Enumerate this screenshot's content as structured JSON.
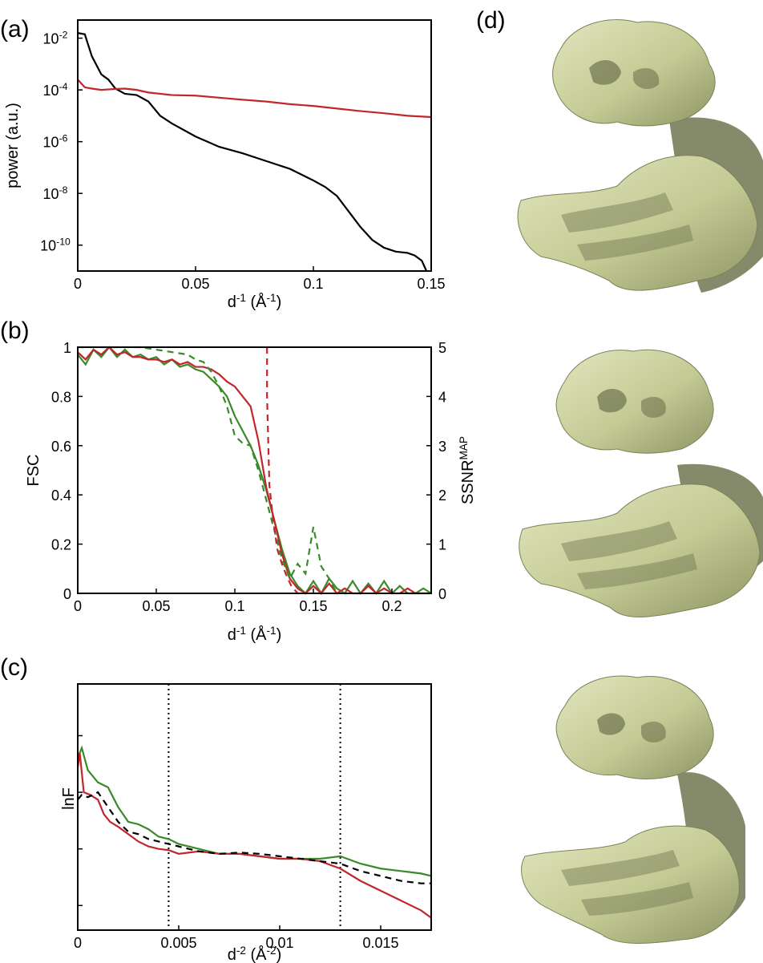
{
  "panel_labels": {
    "a": "(a)",
    "b": "(b)",
    "c": "(c)",
    "d": "(d)"
  },
  "colors": {
    "black": "#000000",
    "red": "#c0272d",
    "green": "#3a8a2a",
    "map_fill": "#c9cf9b",
    "map_shadow": "#6f7550"
  },
  "chart_data": [
    {
      "id": "a",
      "type": "line",
      "xlabel_main": "d",
      "xlabel_sup1": "-1",
      "xlabel_rest": " (Å",
      "xlabel_sup2": "-1",
      "xlabel_end": ")",
      "ylabel": "power (a.u.)",
      "xlim": [
        0,
        0.15
      ],
      "ylim_log10": [
        -11,
        -1.3
      ],
      "y_scale": "log",
      "x_ticks": [
        0,
        0.05,
        0.1,
        0.15
      ],
      "x_tick_labels": [
        "0",
        "0.05",
        "0.1",
        "0.15"
      ],
      "y_ticks_exp": [
        -10,
        -8,
        -6,
        -4,
        -2
      ],
      "y_tick_labels": [
        {
          "base": "10",
          "exp": "-10"
        },
        {
          "base": "10",
          "exp": "-8"
        },
        {
          "base": "10",
          "exp": "-6"
        },
        {
          "base": "10",
          "exp": "-4"
        },
        {
          "base": "10",
          "exp": "-2"
        }
      ],
      "series": [
        {
          "color": "#000000",
          "x": [
            0,
            0.003,
            0.006,
            0.01,
            0.013,
            0.016,
            0.02,
            0.025,
            0.03,
            0.035,
            0.04,
            0.05,
            0.06,
            0.07,
            0.08,
            0.09,
            0.1,
            0.105,
            0.11,
            0.115,
            0.12,
            0.125,
            0.13,
            0.135,
            0.14,
            0.143,
            0.146,
            0.148
          ],
          "y_log10": [
            -1.8,
            -1.85,
            -2.7,
            -3.4,
            -3.6,
            -3.95,
            -4.15,
            -4.2,
            -4.45,
            -5.0,
            -5.3,
            -5.8,
            -6.2,
            -6.45,
            -6.75,
            -7.05,
            -7.5,
            -7.75,
            -8.1,
            -8.7,
            -9.3,
            -9.8,
            -10.1,
            -10.25,
            -10.3,
            -10.4,
            -10.6,
            -11.1
          ]
        },
        {
          "color": "#c0272d",
          "x": [
            0,
            0.003,
            0.006,
            0.01,
            0.015,
            0.02,
            0.025,
            0.03,
            0.04,
            0.05,
            0.06,
            0.07,
            0.08,
            0.09,
            0.1,
            0.11,
            0.12,
            0.13,
            0.14,
            0.15
          ],
          "y_log10": [
            -3.6,
            -3.9,
            -3.95,
            -4.0,
            -3.97,
            -3.95,
            -4.0,
            -4.1,
            -4.2,
            -4.22,
            -4.3,
            -4.38,
            -4.45,
            -4.55,
            -4.62,
            -4.72,
            -4.82,
            -4.9,
            -5.0,
            -5.05
          ]
        }
      ]
    },
    {
      "id": "b",
      "type": "line",
      "xlabel_main": "d",
      "xlabel_sup1": "-1",
      "xlabel_rest": " (Å",
      "xlabel_sup2": "-1",
      "xlabel_end": ")",
      "ylabel": "FSC",
      "y2label_main": "SSNR",
      "y2label_sup": "MAP",
      "xlim": [
        0,
        0.225
      ],
      "ylim": [
        0,
        1
      ],
      "y2lim": [
        0,
        5
      ],
      "x_ticks": [
        0,
        0.05,
        0.1,
        0.15,
        0.2
      ],
      "x_tick_labels": [
        "0",
        "0.05",
        "0.1",
        "0.15",
        "0.2"
      ],
      "y_ticks": [
        0,
        0.2,
        0.4,
        0.6,
        0.8,
        1
      ],
      "y_tick_labels": [
        "0",
        "0.2",
        "0.4",
        "0.6",
        "0.8",
        "1"
      ],
      "y2_ticks": [
        0,
        1,
        2,
        3,
        4,
        5
      ],
      "y2_tick_labels": [
        "0",
        "1",
        "2",
        "3",
        "4",
        "5"
      ],
      "series": [
        {
          "color": "#3a8a2a",
          "axis": "left",
          "dash": false,
          "x": [
            0,
            0.005,
            0.01,
            0.015,
            0.02,
            0.025,
            0.03,
            0.035,
            0.04,
            0.045,
            0.05,
            0.055,
            0.06,
            0.065,
            0.07,
            0.075,
            0.08,
            0.085,
            0.09,
            0.095,
            0.1,
            0.105,
            0.11,
            0.115,
            0.12,
            0.125,
            0.13,
            0.135,
            0.14,
            0.145,
            0.15,
            0.155,
            0.16,
            0.165,
            0.17,
            0.175,
            0.18,
            0.185,
            0.19,
            0.195,
            0.2,
            0.205,
            0.21,
            0.215,
            0.22,
            0.225
          ],
          "y": [
            0.97,
            0.93,
            0.99,
            0.96,
            1.0,
            0.96,
            0.99,
            0.96,
            0.97,
            0.95,
            0.96,
            0.93,
            0.95,
            0.92,
            0.93,
            0.91,
            0.9,
            0.87,
            0.84,
            0.8,
            0.72,
            0.66,
            0.6,
            0.52,
            0.42,
            0.3,
            0.18,
            0.08,
            0.03,
            0.0,
            0.05,
            0.0,
            0.06,
            0.02,
            0.0,
            0.05,
            0.0,
            0.04,
            0.0,
            0.05,
            0.0,
            0.03,
            0.0,
            0.0,
            0.02,
            0.0
          ]
        },
        {
          "color": "#c0272d",
          "axis": "left",
          "dash": false,
          "x": [
            0,
            0.005,
            0.01,
            0.015,
            0.02,
            0.025,
            0.03,
            0.035,
            0.04,
            0.045,
            0.05,
            0.055,
            0.06,
            0.065,
            0.07,
            0.075,
            0.08,
            0.085,
            0.09,
            0.095,
            0.1,
            0.105,
            0.11,
            0.115,
            0.12,
            0.125,
            0.13,
            0.135,
            0.14,
            0.145,
            0.15,
            0.155,
            0.16,
            0.165,
            0.17,
            0.175,
            0.18,
            0.185,
            0.19,
            0.195,
            0.2,
            0.205,
            0.21,
            0.215,
            0.22,
            0.225
          ],
          "y": [
            0.98,
            0.95,
            0.99,
            0.97,
            1.0,
            0.97,
            0.98,
            0.96,
            0.96,
            0.95,
            0.95,
            0.94,
            0.95,
            0.93,
            0.94,
            0.92,
            0.92,
            0.91,
            0.89,
            0.86,
            0.84,
            0.8,
            0.76,
            0.62,
            0.43,
            0.3,
            0.16,
            0.06,
            0.02,
            0.0,
            0.03,
            0.0,
            0.04,
            0.0,
            0.02,
            0.0,
            0.0,
            0.03,
            0.0,
            0.02,
            0.0,
            0.0,
            0.02,
            0.0,
            0.0,
            0.0
          ]
        },
        {
          "color": "#3a8a2a",
          "axis": "right",
          "dash": true,
          "x": [
            0,
            0.01,
            0.02,
            0.03,
            0.04,
            0.05,
            0.06,
            0.07,
            0.075,
            0.08,
            0.085,
            0.09,
            0.095,
            0.1,
            0.105,
            0.11,
            0.115,
            0.12,
            0.125,
            0.13,
            0.135,
            0.14,
            0.145,
            0.15,
            0.155,
            0.16,
            0.165
          ],
          "y": [
            5,
            5,
            5,
            5,
            5,
            4.95,
            4.9,
            4.85,
            4.75,
            4.7,
            4.5,
            4.2,
            3.8,
            3.2,
            3.05,
            3.0,
            2.5,
            1.9,
            1.3,
            0.7,
            0.3,
            0.6,
            0.4,
            1.35,
            0.55,
            0.3,
            0.0
          ]
        },
        {
          "color": "#c0272d",
          "axis": "right",
          "dash": true,
          "x": [
            0.1205,
            0.1205,
            0.122,
            0.124,
            0.127,
            0.13,
            0.133,
            0.136,
            0.14
          ],
          "y": [
            5,
            4.0,
            2.2,
            1.6,
            0.9,
            0.6,
            0.35,
            0.15,
            0.0
          ]
        }
      ]
    },
    {
      "id": "c",
      "type": "line",
      "xlabel_main": "d",
      "xlabel_sup1": "-2",
      "xlabel_rest": " (Å",
      "xlabel_sup2": "-2",
      "xlabel_end": ")",
      "ylabel": "lnF",
      "xlim": [
        0,
        0.0175
      ],
      "ylim": [
        0,
        1
      ],
      "x_ticks": [
        0,
        0.005,
        0.01,
        0.015
      ],
      "x_tick_labels": [
        "0",
        "0.005",
        "0.01",
        "0.015"
      ],
      "vlines": [
        0.0045,
        0.013
      ],
      "series": [
        {
          "color": "#3a8a2a",
          "dash": false,
          "x": [
            0,
            0.0002,
            0.0005,
            0.001,
            0.0015,
            0.002,
            0.0025,
            0.003,
            0.0035,
            0.004,
            0.0045,
            0.005,
            0.006,
            0.007,
            0.008,
            0.009,
            0.01,
            0.011,
            0.012,
            0.013,
            0.014,
            0.015,
            0.016,
            0.017,
            0.0175
          ],
          "y": [
            0.7,
            0.74,
            0.65,
            0.6,
            0.58,
            0.5,
            0.44,
            0.43,
            0.41,
            0.38,
            0.37,
            0.35,
            0.33,
            0.31,
            0.31,
            0.3,
            0.29,
            0.29,
            0.29,
            0.3,
            0.27,
            0.25,
            0.24,
            0.23,
            0.22
          ]
        },
        {
          "color": "#c0272d",
          "dash": false,
          "x": [
            0,
            0.0001,
            0.0003,
            0.0006,
            0.001,
            0.0013,
            0.0016,
            0.002,
            0.0025,
            0.003,
            0.0035,
            0.004,
            0.0045,
            0.005,
            0.006,
            0.007,
            0.008,
            0.009,
            0.01,
            0.011,
            0.012,
            0.013,
            0.014,
            0.015,
            0.016,
            0.017,
            0.0175
          ],
          "y": [
            0.66,
            0.72,
            0.56,
            0.55,
            0.53,
            0.47,
            0.44,
            0.42,
            0.39,
            0.36,
            0.34,
            0.33,
            0.325,
            0.31,
            0.32,
            0.31,
            0.31,
            0.3,
            0.29,
            0.29,
            0.28,
            0.25,
            0.2,
            0.16,
            0.12,
            0.08,
            0.05
          ]
        },
        {
          "color": "#000000",
          "dash": true,
          "x": [
            0,
            0.0002,
            0.0005,
            0.001,
            0.0015,
            0.002,
            0.0025,
            0.003,
            0.0035,
            0.004,
            0.0045,
            0.005,
            0.006,
            0.007,
            0.008,
            0.009,
            0.01,
            0.011,
            0.012,
            0.013,
            0.014,
            0.015,
            0.016,
            0.017,
            0.0175
          ],
          "y": [
            0.53,
            0.55,
            0.54,
            0.56,
            0.5,
            0.44,
            0.4,
            0.39,
            0.37,
            0.36,
            0.35,
            0.34,
            0.32,
            0.31,
            0.315,
            0.31,
            0.3,
            0.29,
            0.28,
            0.27,
            0.24,
            0.22,
            0.2,
            0.19,
            0.19
          ]
        }
      ]
    }
  ]
}
